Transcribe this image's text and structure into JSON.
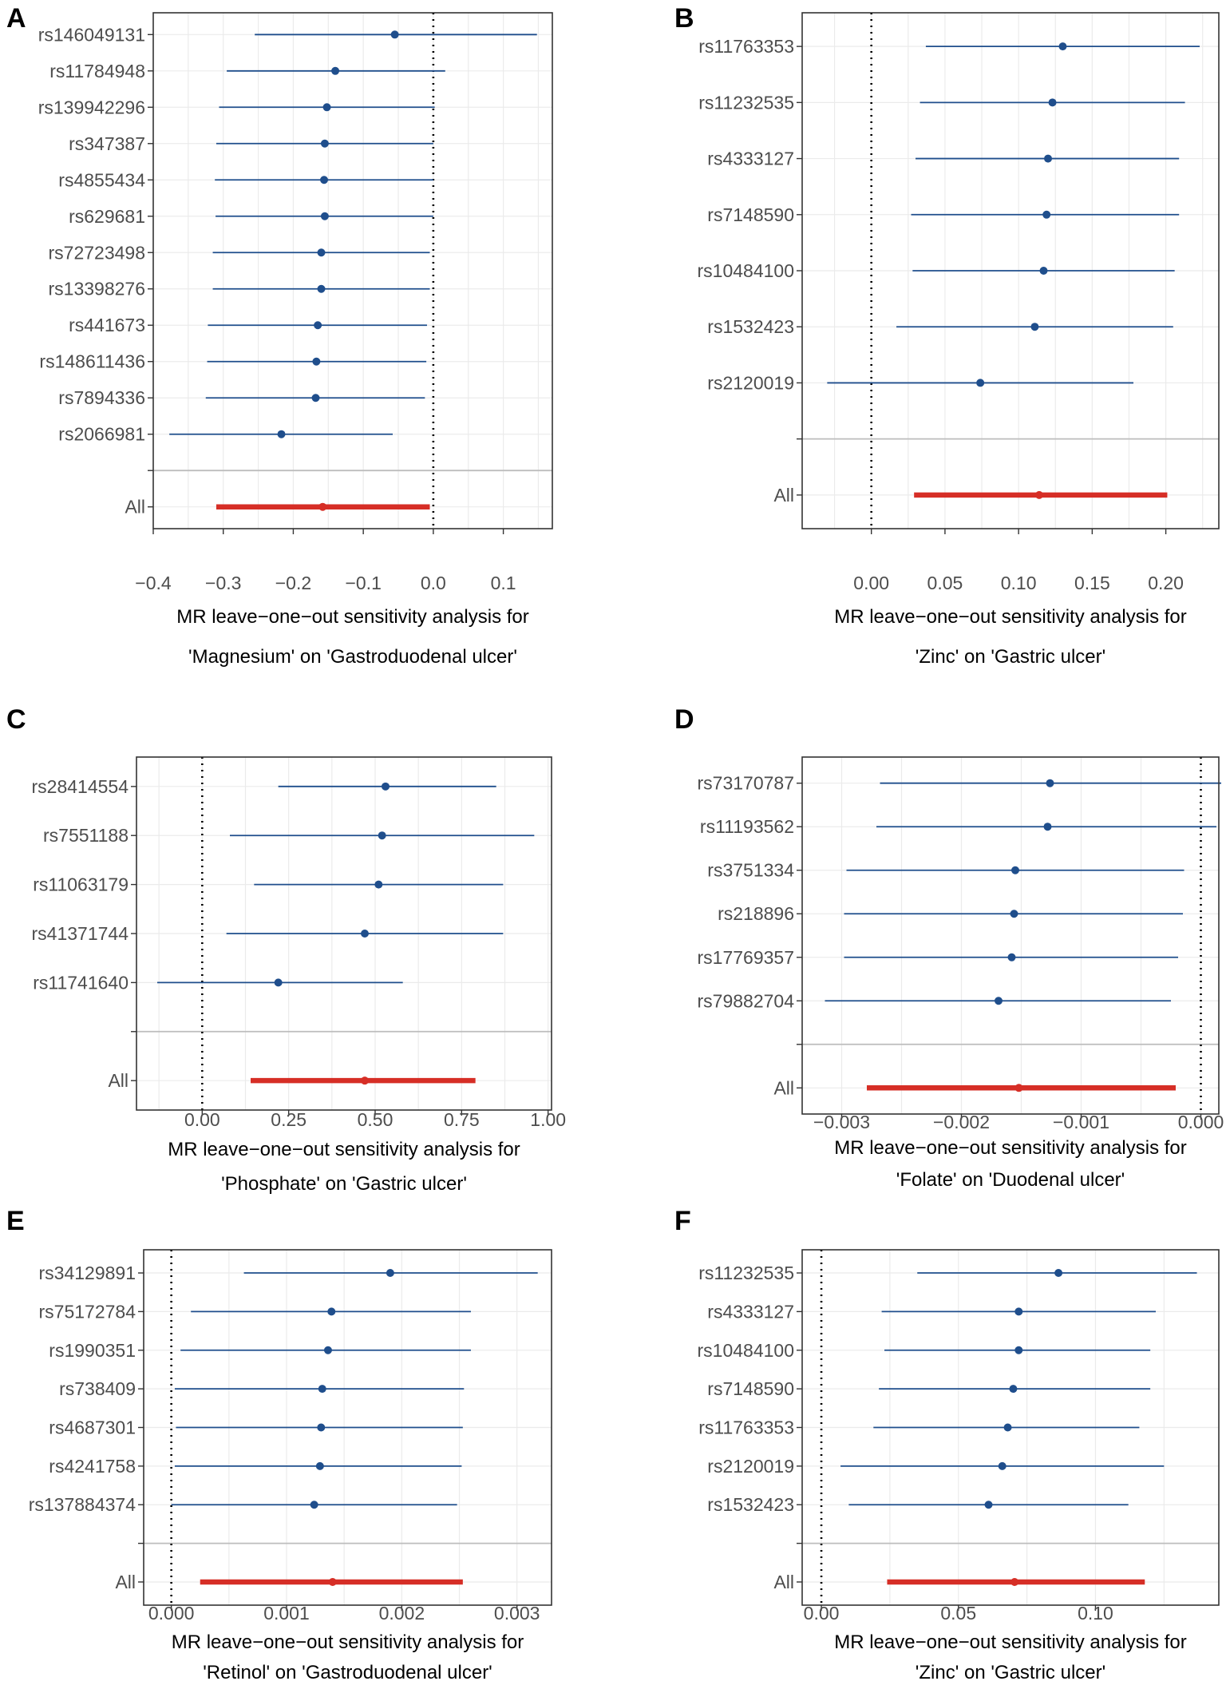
{
  "colors": {
    "point": "#1f4e8c",
    "overall": "#d62e26"
  },
  "chart_data": [
    {
      "panel": "A",
      "type": "forest",
      "xlabel_line1": "MR leave−one−out sensitivity analysis for",
      "xlabel_line2": "'Magnesium' on 'Gastroduodenal ulcer'",
      "xlim": [
        -0.4,
        0.17
      ],
      "ticks": [
        -0.4,
        -0.3,
        -0.2,
        -0.1,
        0.0,
        0.1
      ],
      "tick_labels": [
        "−0.4",
        "−0.3",
        "−0.2",
        "−0.1",
        "0.0",
        "0.1"
      ],
      "snps": [
        {
          "label": "rs146049131",
          "b": -0.055,
          "lo": -0.255,
          "hi": 0.148
        },
        {
          "label": "rs11784948",
          "b": -0.14,
          "lo": -0.295,
          "hi": 0.017
        },
        {
          "label": "rs139942296",
          "b": -0.152,
          "lo": -0.306,
          "hi": 0.002
        },
        {
          "label": "rs347387",
          "b": -0.155,
          "lo": -0.31,
          "hi": 0.0
        },
        {
          "label": "rs4855434",
          "b": -0.156,
          "lo": -0.312,
          "hi": 0.0
        },
        {
          "label": "rs629681",
          "b": -0.155,
          "lo": -0.311,
          "hi": 0.0
        },
        {
          "label": "rs72723498",
          "b": -0.16,
          "lo": -0.315,
          "hi": -0.005
        },
        {
          "label": "rs13398276",
          "b": -0.16,
          "lo": -0.315,
          "hi": -0.005
        },
        {
          "label": "rs441673",
          "b": -0.165,
          "lo": -0.322,
          "hi": -0.009
        },
        {
          "label": "rs148611436",
          "b": -0.167,
          "lo": -0.323,
          "hi": -0.01
        },
        {
          "label": "rs7894336",
          "b": -0.168,
          "lo": -0.325,
          "hi": -0.012
        },
        {
          "label": "rs2066981",
          "b": -0.217,
          "lo": -0.377,
          "hi": -0.058
        }
      ],
      "overall": {
        "label": "All",
        "b": -0.158,
        "lo": -0.31,
        "hi": -0.005
      }
    },
    {
      "panel": "B",
      "type": "forest",
      "xlabel_line1": "MR leave−one−out sensitivity analysis for",
      "xlabel_line2": "'Zinc' on 'Gastric ulcer'",
      "xlim": [
        -0.047,
        0.236
      ],
      "ticks": [
        0.0,
        0.05,
        0.1,
        0.15,
        0.2
      ],
      "tick_labels": [
        "0.00",
        "0.05",
        "0.10",
        "0.15",
        "0.20"
      ],
      "snps": [
        {
          "label": "rs11763353",
          "b": 0.13,
          "lo": 0.037,
          "hi": 0.223
        },
        {
          "label": "rs11232535",
          "b": 0.123,
          "lo": 0.033,
          "hi": 0.213
        },
        {
          "label": "rs4333127",
          "b": 0.12,
          "lo": 0.03,
          "hi": 0.209
        },
        {
          "label": "rs7148590",
          "b": 0.119,
          "lo": 0.027,
          "hi": 0.209
        },
        {
          "label": "rs10484100",
          "b": 0.117,
          "lo": 0.028,
          "hi": 0.206
        },
        {
          "label": "rs1532423",
          "b": 0.111,
          "lo": 0.017,
          "hi": 0.205
        },
        {
          "label": "rs2120019",
          "b": 0.074,
          "lo": -0.03,
          "hi": 0.178
        }
      ],
      "overall": {
        "label": "All",
        "b": 0.114,
        "lo": 0.029,
        "hi": 0.201
      }
    },
    {
      "panel": "C",
      "type": "forest",
      "xlabel_line1": "MR leave−one−out sensitivity analysis for",
      "xlabel_line2": "'Phosphate' on 'Gastric ulcer'",
      "xlim": [
        -0.19,
        1.01
      ],
      "ticks": [
        0.0,
        0.25,
        0.5,
        0.75,
        1.0
      ],
      "tick_labels": [
        "0.00",
        "0.25",
        "0.50",
        "0.75",
        "1.00"
      ],
      "snps": [
        {
          "label": "rs28414554",
          "b": 0.53,
          "lo": 0.22,
          "hi": 0.85
        },
        {
          "label": "rs7551188",
          "b": 0.52,
          "lo": 0.08,
          "hi": 0.96
        },
        {
          "label": "rs11063179",
          "b": 0.51,
          "lo": 0.15,
          "hi": 0.87
        },
        {
          "label": "rs41371744",
          "b": 0.47,
          "lo": 0.07,
          "hi": 0.87
        },
        {
          "label": "rs11741640",
          "b": 0.22,
          "lo": -0.13,
          "hi": 0.58
        }
      ],
      "overall": {
        "label": "All",
        "b": 0.47,
        "lo": 0.14,
        "hi": 0.79
      }
    },
    {
      "panel": "D",
      "type": "forest",
      "xlabel_line1": "MR leave−one−out sensitivity analysis for",
      "xlabel_line2": "'Folate' on 'Duodenal ulcer'",
      "xlim": [
        -0.00333,
        0.00015
      ],
      "ticks": [
        -0.003,
        -0.002,
        -0.001,
        0.0
      ],
      "tick_labels": [
        "−0.003",
        "−0.002",
        "−0.001",
        "0.000"
      ],
      "snps": [
        {
          "label": "rs73170787",
          "b": -0.00126,
          "lo": -0.00268,
          "hi": 0.00017
        },
        {
          "label": "rs11193562",
          "b": -0.00128,
          "lo": -0.00271,
          "hi": 0.00013
        },
        {
          "label": "rs3751334",
          "b": -0.00155,
          "lo": -0.00296,
          "hi": -0.00014
        },
        {
          "label": "rs218896",
          "b": -0.00156,
          "lo": -0.00298,
          "hi": -0.00015
        },
        {
          "label": "rs17769357",
          "b": -0.00158,
          "lo": -0.00298,
          "hi": -0.00019
        },
        {
          "label": "rs79882704",
          "b": -0.00169,
          "lo": -0.00314,
          "hi": -0.00025
        }
      ],
      "overall": {
        "label": "All",
        "b": -0.00152,
        "lo": -0.00279,
        "hi": -0.00021
      }
    },
    {
      "panel": "E",
      "type": "forest",
      "xlabel_line1": "MR leave−one−out sensitivity analysis for",
      "xlabel_line2": "'Retinol' on 'Gastroduodenal ulcer'",
      "xlim": [
        -0.00024,
        0.0033
      ],
      "ticks": [
        0.0,
        0.001,
        0.002,
        0.003
      ],
      "tick_labels": [
        "0.000",
        "0.001",
        "0.002",
        "0.003"
      ],
      "snps": [
        {
          "label": "rs34129891",
          "b": 0.0019,
          "lo": 0.00063,
          "hi": 0.00318
        },
        {
          "label": "rs75172784",
          "b": 0.00139,
          "lo": 0.00017,
          "hi": 0.0026
        },
        {
          "label": "rs1990351",
          "b": 0.00136,
          "lo": 8e-05,
          "hi": 0.0026
        },
        {
          "label": "rs738409",
          "b": 0.00131,
          "lo": 3e-05,
          "hi": 0.00254
        },
        {
          "label": "rs4687301",
          "b": 0.0013,
          "lo": 4e-05,
          "hi": 0.00253
        },
        {
          "label": "rs4241758",
          "b": 0.00129,
          "lo": 3e-05,
          "hi": 0.00252
        },
        {
          "label": "rs137884374",
          "b": 0.00124,
          "lo": 0.0,
          "hi": 0.00248
        }
      ],
      "overall": {
        "label": "All",
        "b": 0.0014,
        "lo": 0.00025,
        "hi": 0.00253
      }
    },
    {
      "panel": "F",
      "type": "forest",
      "xlabel_line1": "MR leave−one−out sensitivity analysis for",
      "xlabel_line2": "'Zinc' on 'Gastric ulcer'",
      "xlim": [
        -0.007,
        0.145
      ],
      "ticks": [
        0.0,
        0.05,
        0.1
      ],
      "tick_labels": [
        "0.00",
        "0.05",
        "0.10"
      ],
      "snps": [
        {
          "label": "rs11232535",
          "b": 0.0865,
          "lo": 0.035,
          "hi": 0.137
        },
        {
          "label": "rs4333127",
          "b": 0.072,
          "lo": 0.022,
          "hi": 0.122
        },
        {
          "label": "rs10484100",
          "b": 0.072,
          "lo": 0.023,
          "hi": 0.12
        },
        {
          "label": "rs7148590",
          "b": 0.07,
          "lo": 0.021,
          "hi": 0.12
        },
        {
          "label": "rs11763353",
          "b": 0.068,
          "lo": 0.019,
          "hi": 0.116
        },
        {
          "label": "rs2120019",
          "b": 0.066,
          "lo": 0.007,
          "hi": 0.125
        },
        {
          "label": "rs1532423",
          "b": 0.061,
          "lo": 0.01,
          "hi": 0.112
        }
      ],
      "overall": {
        "label": "All",
        "b": 0.0705,
        "lo": 0.024,
        "hi": 0.118
      }
    }
  ]
}
